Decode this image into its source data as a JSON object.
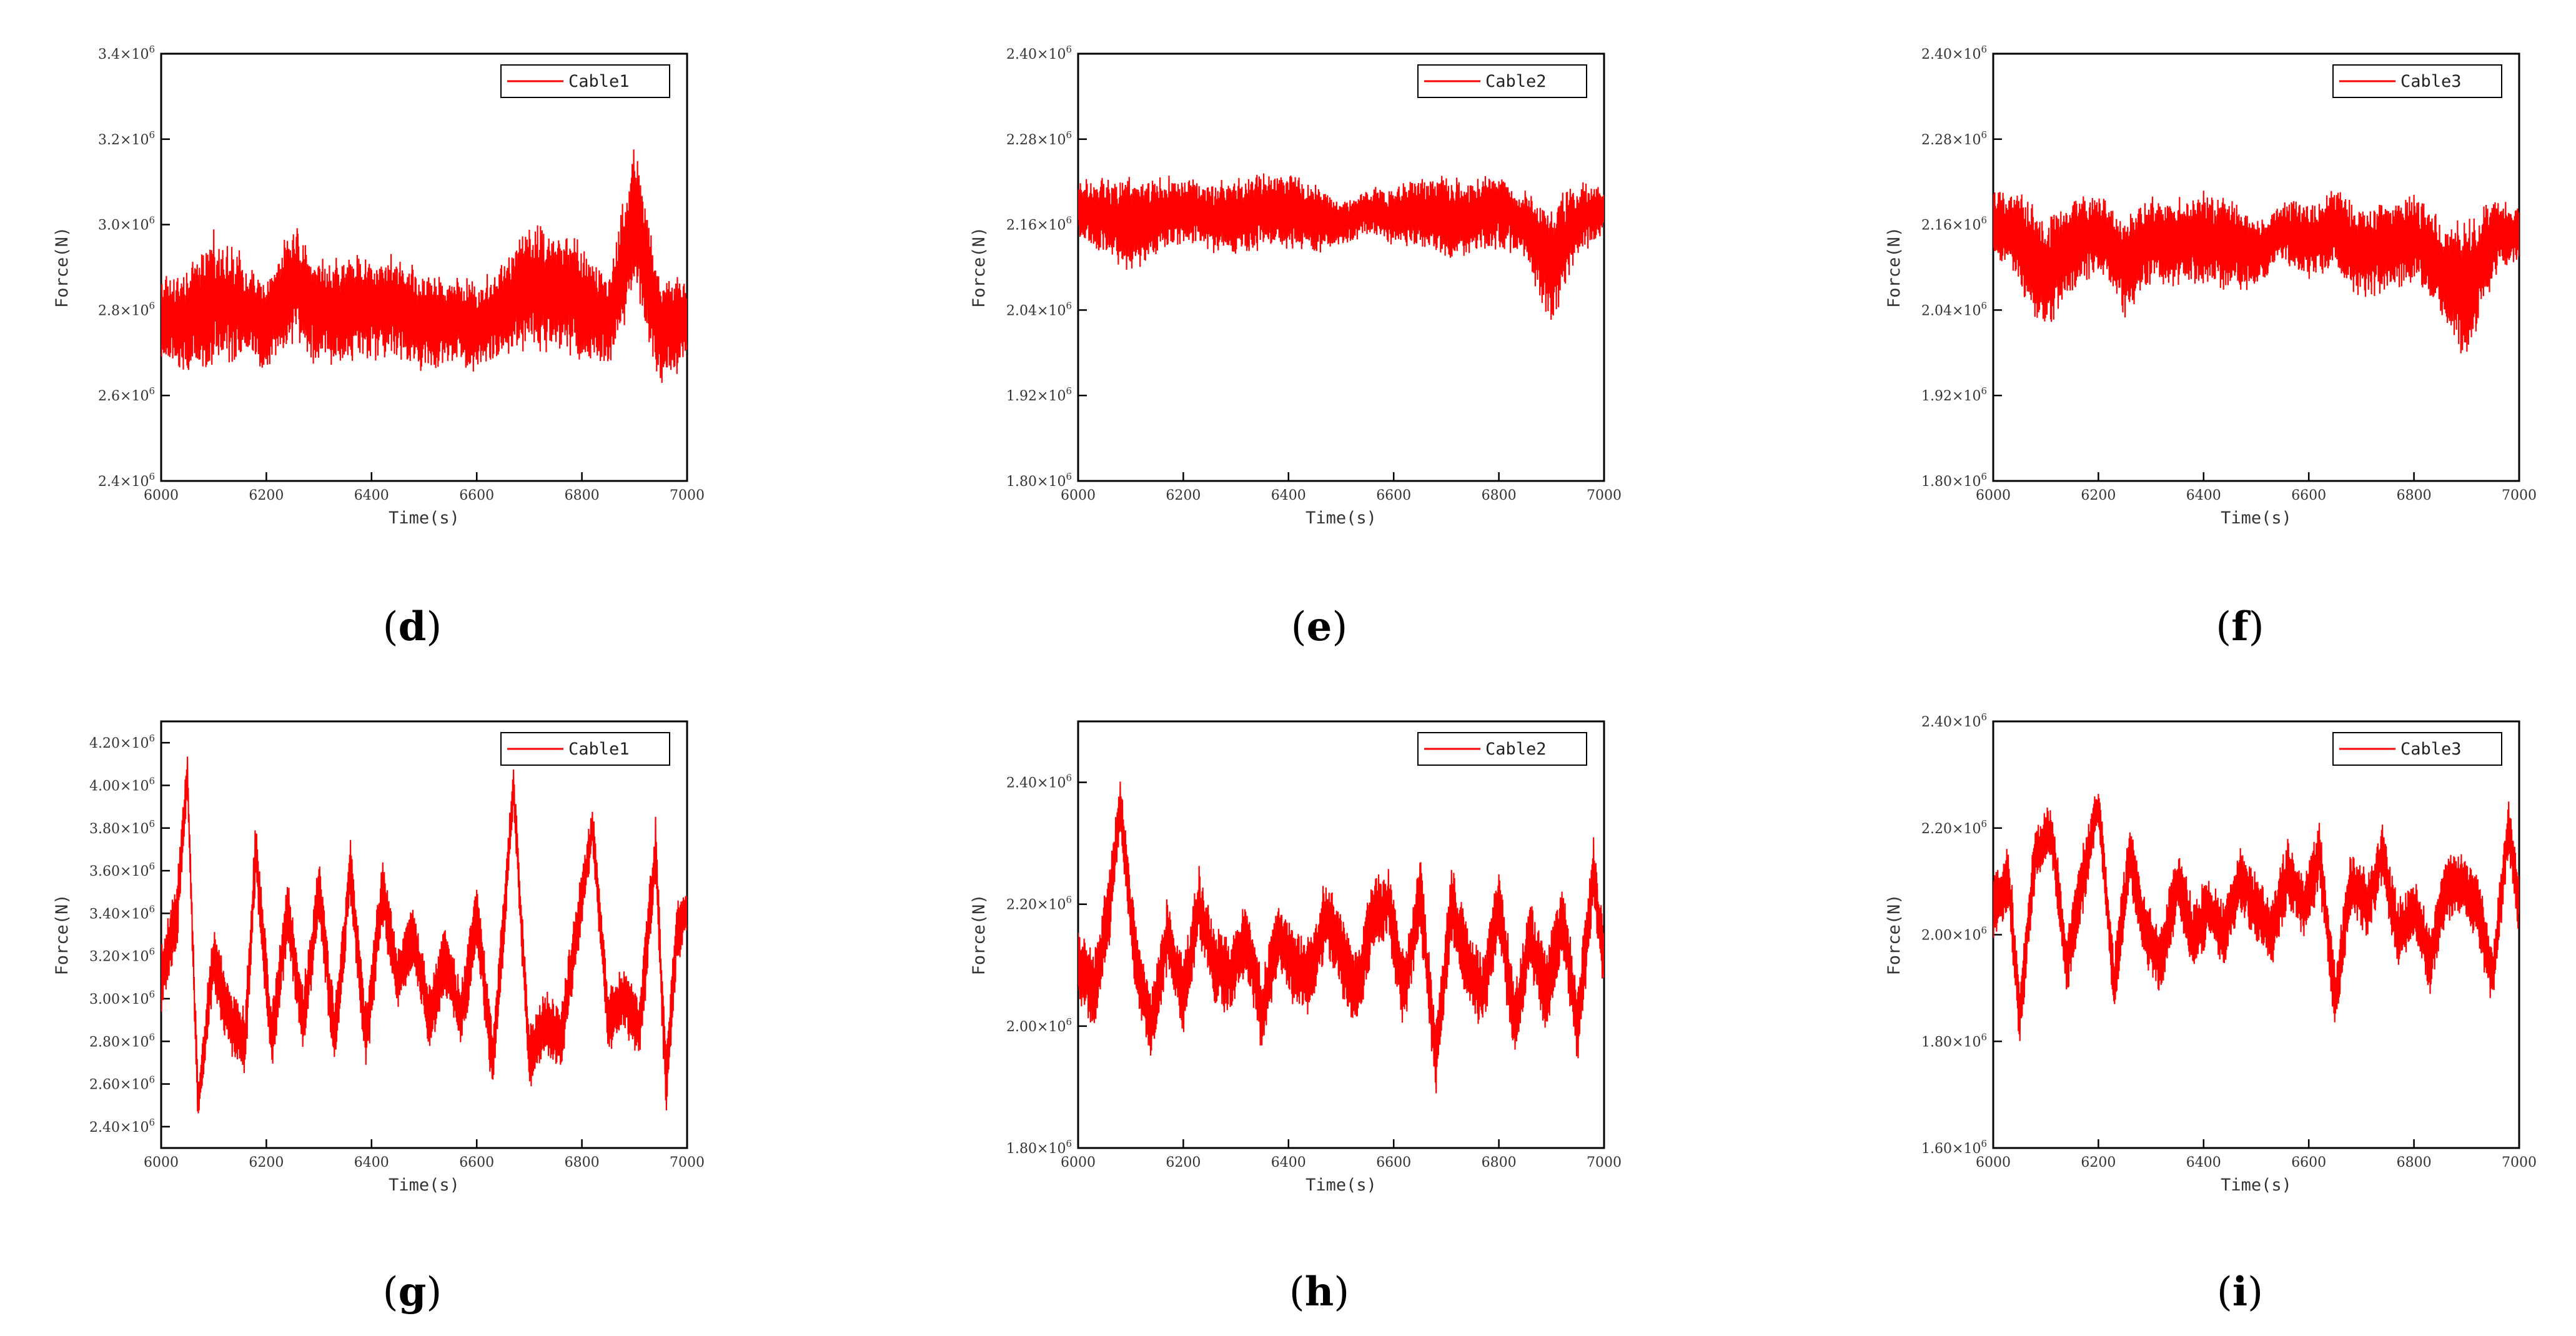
{
  "series_color": "#ff0000",
  "chart_data": [
    {
      "type": "line",
      "panel": "d",
      "xlabel": "Time(s)",
      "ylabel": "Force(N)",
      "xlim": [
        6000,
        7000
      ],
      "ylim": [
        2400000.0,
        3400000.0
      ],
      "xticks": [
        6000,
        6200,
        6400,
        6600,
        6800,
        7000
      ],
      "xtick_labels": [
        "6000",
        "6200",
        "6400",
        "6600",
        "6800",
        "7000"
      ],
      "yticks": [
        2400000.0,
        2600000.0,
        2800000.0,
        3000000.0,
        3200000.0,
        3400000.0
      ],
      "ytick_mant": [
        "2.4",
        "2.6",
        "2.8",
        "3.0",
        "3.2",
        "3.4"
      ],
      "legend_position": "top-right",
      "series": [
        {
          "name": "Cable1",
          "color": "#ff0000",
          "x": [
            6000,
            6050,
            6100,
            6150,
            6200,
            6250,
            6300,
            6350,
            6400,
            6450,
            6500,
            6550,
            6600,
            6650,
            6700,
            6750,
            6800,
            6850,
            6900,
            6950,
            7000
          ],
          "center": [
            2780000.0,
            2770000.0,
            2830000.0,
            2800000.0,
            2760000.0,
            2870000.0,
            2790000.0,
            2800000.0,
            2810000.0,
            2800000.0,
            2770000.0,
            2780000.0,
            2760000.0,
            2800000.0,
            2860000.0,
            2840000.0,
            2820000.0,
            2770000.0,
            3020000.0,
            2740000.0,
            2780000.0
          ],
          "amp": [
            100000.0,
            110000.0,
            140000.0,
            120000.0,
            100000.0,
            130000.0,
            120000.0,
            120000.0,
            110000.0,
            120000.0,
            110000.0,
            100000.0,
            100000.0,
            100000.0,
            140000.0,
            130000.0,
            140000.0,
            100000.0,
            170000.0,
            120000.0,
            90000.0
          ]
        }
      ]
    },
    {
      "type": "line",
      "panel": "e",
      "xlabel": "Time(s)",
      "ylabel": "Force(N)",
      "xlim": [
        6000,
        7000
      ],
      "ylim": [
        1800000.0,
        2400000.0
      ],
      "xticks": [
        6000,
        6200,
        6400,
        6600,
        6800,
        7000
      ],
      "xtick_labels": [
        "6000",
        "6200",
        "6400",
        "6600",
        "6800",
        "7000"
      ],
      "yticks": [
        1800000.0,
        1920000.0,
        2040000.0,
        2160000.0,
        2280000.0,
        2400000.0
      ],
      "ytick_mant": [
        "1.80",
        "1.92",
        "2.04",
        "2.16",
        "2.28",
        "2.40"
      ],
      "legend_position": "top-right",
      "series": [
        {
          "name": "Cable2",
          "color": "#ff0000",
          "x": [
            6000,
            6050,
            6100,
            6150,
            6200,
            6250,
            6300,
            6350,
            6400,
            6450,
            6500,
            6550,
            6600,
            6650,
            6700,
            6750,
            6800,
            6850,
            6900,
            6950,
            7000
          ],
          "center": [
            2180000.0,
            2170000.0,
            2160000.0,
            2170000.0,
            2180000.0,
            2170000.0,
            2170000.0,
            2180000.0,
            2180000.0,
            2170000.0,
            2160000.0,
            2180000.0,
            2170000.0,
            2180000.0,
            2170000.0,
            2170000.0,
            2180000.0,
            2160000.0,
            2100000.0,
            2170000.0,
            2180000.0
          ],
          "amp": [
            40000.0,
            50000.0,
            60000.0,
            50000.0,
            45000.0,
            45000.0,
            50000.0,
            50000.0,
            50000.0,
            45000.0,
            30000.0,
            30000.0,
            40000.0,
            45000.0,
            55000.0,
            50000.0,
            50000.0,
            45000.0,
            80000.0,
            50000.0,
            30000.0
          ]
        }
      ]
    },
    {
      "type": "line",
      "panel": "f",
      "xlabel": "Time(s)",
      "ylabel": "Force(N)",
      "xlim": [
        6000,
        7000
      ],
      "ylim": [
        1800000.0,
        2400000.0
      ],
      "xticks": [
        6000,
        6200,
        6400,
        6600,
        6800,
        7000
      ],
      "xtick_labels": [
        "6000",
        "6200",
        "6400",
        "6600",
        "6800",
        "7000"
      ],
      "yticks": [
        1800000.0,
        1920000.0,
        2040000.0,
        2160000.0,
        2280000.0,
        2400000.0
      ],
      "ytick_mant": [
        "1.80",
        "1.92",
        "2.04",
        "2.16",
        "2.28",
        "2.40"
      ],
      "legend_position": "top-right",
      "series": [
        {
          "name": "Cable3",
          "color": "#ff0000",
          "x": [
            6000,
            6050,
            6100,
            6150,
            6200,
            6250,
            6300,
            6350,
            6400,
            6450,
            6500,
            6550,
            6600,
            6650,
            6700,
            6750,
            6800,
            6850,
            6900,
            6950,
            7000
          ],
          "center": [
            2160000.0,
            2140000.0,
            2090000.0,
            2130000.0,
            2150000.0,
            2100000.0,
            2140000.0,
            2130000.0,
            2140000.0,
            2130000.0,
            2120000.0,
            2150000.0,
            2140000.0,
            2150000.0,
            2120000.0,
            2130000.0,
            2140000.0,
            2100000.0,
            2060000.0,
            2140000.0,
            2150000.0
          ],
          "amp": [
            45000.0,
            65000.0,
            80000.0,
            60000.0,
            55000.0,
            65000.0,
            55000.0,
            60000.0,
            60000.0,
            60000.0,
            45000.0,
            40000.0,
            50000.0,
            55000.0,
            65000.0,
            60000.0,
            60000.0,
            60000.0,
            95000.0,
            55000.0,
            35000.0
          ]
        }
      ]
    },
    {
      "type": "line",
      "panel": "g",
      "xlabel": "Time(s)",
      "ylabel": "Force(N)",
      "xlim": [
        6000,
        7000
      ],
      "ylim": [
        2300000.0,
        4300000.0
      ],
      "xticks": [
        6000,
        6200,
        6400,
        6600,
        6800,
        7000
      ],
      "xtick_labels": [
        "6000",
        "6200",
        "6400",
        "6600",
        "6800",
        "7000"
      ],
      "yticks": [
        2400000.0,
        2600000.0,
        2800000.0,
        3000000.0,
        3200000.0,
        3400000.0,
        3600000.0,
        3800000.0,
        4000000.0,
        4200000.0
      ],
      "ytick_mant": [
        "2.40",
        "2.60",
        "2.80",
        "3.00",
        "3.20",
        "3.40",
        "3.60",
        "3.80",
        "4.00",
        "4.20"
      ],
      "legend_position": "top-right",
      "series": [
        {
          "name": "Cable1",
          "color": "#ff0000",
          "x": [
            6000,
            6030,
            6050,
            6070,
            6100,
            6130,
            6160,
            6180,
            6210,
            6240,
            6270,
            6300,
            6330,
            6360,
            6390,
            6420,
            6450,
            6480,
            6510,
            6540,
            6570,
            6600,
            6630,
            6650,
            6670,
            6700,
            6730,
            6760,
            6790,
            6820,
            6850,
            6880,
            6910,
            6940,
            6960,
            6980,
            7000
          ],
          "center": [
            3100000.0,
            3400000.0,
            4050000.0,
            2500000.0,
            3200000.0,
            2900000.0,
            2800000.0,
            3700000.0,
            2800000.0,
            3400000.0,
            2900000.0,
            3500000.0,
            2800000.0,
            3600000.0,
            2800000.0,
            3500000.0,
            3100000.0,
            3300000.0,
            2900000.0,
            3200000.0,
            2900000.0,
            3400000.0,
            2700000.0,
            3300000.0,
            4000000.0,
            2700000.0,
            2900000.0,
            2800000.0,
            3300000.0,
            3800000.0,
            2900000.0,
            3000000.0,
            2850000.0,
            3700000.0,
            2600000.0,
            3300000.0,
            3400000.0
          ],
          "amp": [
            150000.0,
            150000.0,
            100000.0,
            100000.0,
            150000.0,
            150000.0,
            150000.0,
            150000.0,
            150000.0,
            150000.0,
            150000.0,
            150000.0,
            150000.0,
            150000.0,
            150000.0,
            150000.0,
            150000.0,
            150000.0,
            150000.0,
            150000.0,
            150000.0,
            150000.0,
            150000.0,
            150000.0,
            100000.0,
            150000.0,
            150000.0,
            150000.0,
            150000.0,
            100000.0,
            150000.0,
            150000.0,
            150000.0,
            150000.0,
            150000.0,
            150000.0,
            100000.0
          ]
        }
      ]
    },
    {
      "type": "line",
      "panel": "h",
      "xlabel": "Time(s)",
      "ylabel": "Force(N)",
      "xlim": [
        6000,
        7000
      ],
      "ylim": [
        1800000.0,
        2500000.0
      ],
      "xticks": [
        6000,
        6200,
        6400,
        6600,
        6800,
        7000
      ],
      "xtick_labels": [
        "6000",
        "6200",
        "6400",
        "6600",
        "6800",
        "7000"
      ],
      "yticks": [
        1800000.0,
        2000000.0,
        2200000.0,
        2400000.0
      ],
      "ytick_mant": [
        "1.80",
        "2.00",
        "2.20",
        "2.40"
      ],
      "legend_position": "top-right",
      "series": [
        {
          "name": "Cable2",
          "color": "#ff0000",
          "x": [
            6000,
            6030,
            6060,
            6080,
            6110,
            6140,
            6170,
            6200,
            6230,
            6260,
            6290,
            6320,
            6350,
            6380,
            6410,
            6440,
            6470,
            6500,
            6530,
            6560,
            6590,
            6620,
            6650,
            6680,
            6710,
            6740,
            6770,
            6800,
            6830,
            6860,
            6890,
            6920,
            6950,
            6980,
            7000
          ],
          "center": [
            2100000.0,
            2050000.0,
            2200000.0,
            2370000.0,
            2100000.0,
            2000000.0,
            2150000.0,
            2050000.0,
            2200000.0,
            2100000.0,
            2080000.0,
            2150000.0,
            2020000.0,
            2150000.0,
            2100000.0,
            2080000.0,
            2180000.0,
            2120000.0,
            2050000.0,
            2180000.0,
            2200000.0,
            2050000.0,
            2220000.0,
            1950000.0,
            2200000.0,
            2100000.0,
            2050000.0,
            2200000.0,
            2000000.0,
            2150000.0,
            2050000.0,
            2180000.0,
            2000000.0,
            2250000.0,
            2100000.0
          ],
          "amp": [
            60000.0,
            60000.0,
            60000.0,
            40000.0,
            60000.0,
            60000.0,
            60000.0,
            60000.0,
            60000.0,
            60000.0,
            60000.0,
            60000.0,
            60000.0,
            60000.0,
            60000.0,
            60000.0,
            60000.0,
            60000.0,
            60000.0,
            60000.0,
            60000.0,
            60000.0,
            60000.0,
            60000.0,
            60000.0,
            60000.0,
            60000.0,
            60000.0,
            60000.0,
            60000.0,
            60000.0,
            60000.0,
            60000.0,
            60000.0,
            50000.0
          ]
        }
      ]
    },
    {
      "type": "line",
      "panel": "i",
      "xlabel": "Time(s)",
      "ylabel": "Force(N)",
      "xlim": [
        6000,
        7000
      ],
      "ylim": [
        1600000.0,
        2400000.0
      ],
      "xticks": [
        6000,
        6200,
        6400,
        6600,
        6800,
        7000
      ],
      "xtick_labels": [
        "6000",
        "6200",
        "6400",
        "6600",
        "6800",
        "7000"
      ],
      "yticks": [
        1600000.0,
        1800000.0,
        2000000.0,
        2200000.0,
        2400000.0
      ],
      "ytick_mant": [
        "1.60",
        "1.80",
        "2.00",
        "2.20",
        "2.40"
      ],
      "legend_position": "top-right",
      "series": [
        {
          "name": "Cable3",
          "color": "#ff0000",
          "x": [
            6000,
            6030,
            6050,
            6080,
            6110,
            6140,
            6170,
            6200,
            6230,
            6260,
            6290,
            6320,
            6350,
            6380,
            6410,
            6440,
            6470,
            6500,
            6530,
            6560,
            6590,
            6620,
            6650,
            6680,
            6710,
            6740,
            6770,
            6800,
            6830,
            6860,
            6890,
            6920,
            6950,
            6980,
            7000
          ],
          "center": [
            2050000.0,
            2100000.0,
            1850000.0,
            2150000.0,
            2200000.0,
            1950000.0,
            2100000.0,
            2250000.0,
            1900000.0,
            2150000.0,
            2000000.0,
            1950000.0,
            2100000.0,
            2000000.0,
            2050000.0,
            2000000.0,
            2100000.0,
            2050000.0,
            2000000.0,
            2120000.0,
            2050000.0,
            2150000.0,
            1880000.0,
            2100000.0,
            2050000.0,
            2150000.0,
            2000000.0,
            2050000.0,
            1950000.0,
            2080000.0,
            2100000.0,
            2050000.0,
            1920000.0,
            2200000.0,
            2050000.0
          ],
          "amp": [
            60000.0,
            60000.0,
            60000.0,
            50000.0,
            50000.0,
            60000.0,
            60000.0,
            40000.0,
            60000.0,
            60000.0,
            60000.0,
            60000.0,
            60000.0,
            60000.0,
            60000.0,
            60000.0,
            60000.0,
            60000.0,
            60000.0,
            60000.0,
            60000.0,
            60000.0,
            60000.0,
            60000.0,
            60000.0,
            60000.0,
            60000.0,
            60000.0,
            60000.0,
            60000.0,
            60000.0,
            60000.0,
            60000.0,
            50000.0,
            60000.0
          ]
        }
      ]
    }
  ]
}
